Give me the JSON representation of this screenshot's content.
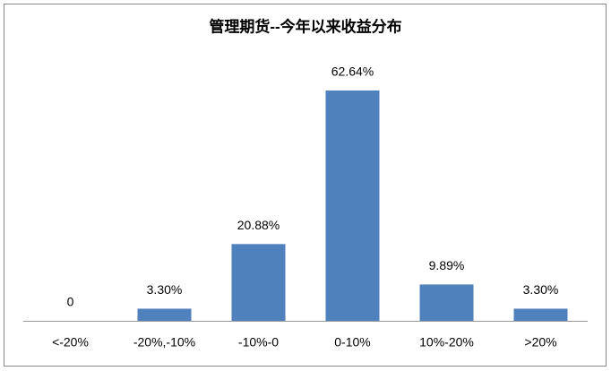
{
  "chart_data": {
    "type": "bar",
    "title": "管理期货--今年以来收益分布",
    "categories": [
      "<-20%",
      "-20%,-10%",
      "-10%-0",
      "0-10%",
      "10%-20%",
      ">20%"
    ],
    "values": [
      0,
      3.3,
      20.88,
      62.64,
      9.89,
      3.3
    ],
    "value_labels": [
      "0",
      "3.30%",
      "20.88%",
      "62.64%",
      "9.89%",
      "3.30%"
    ],
    "color": "#4f81bd"
  }
}
